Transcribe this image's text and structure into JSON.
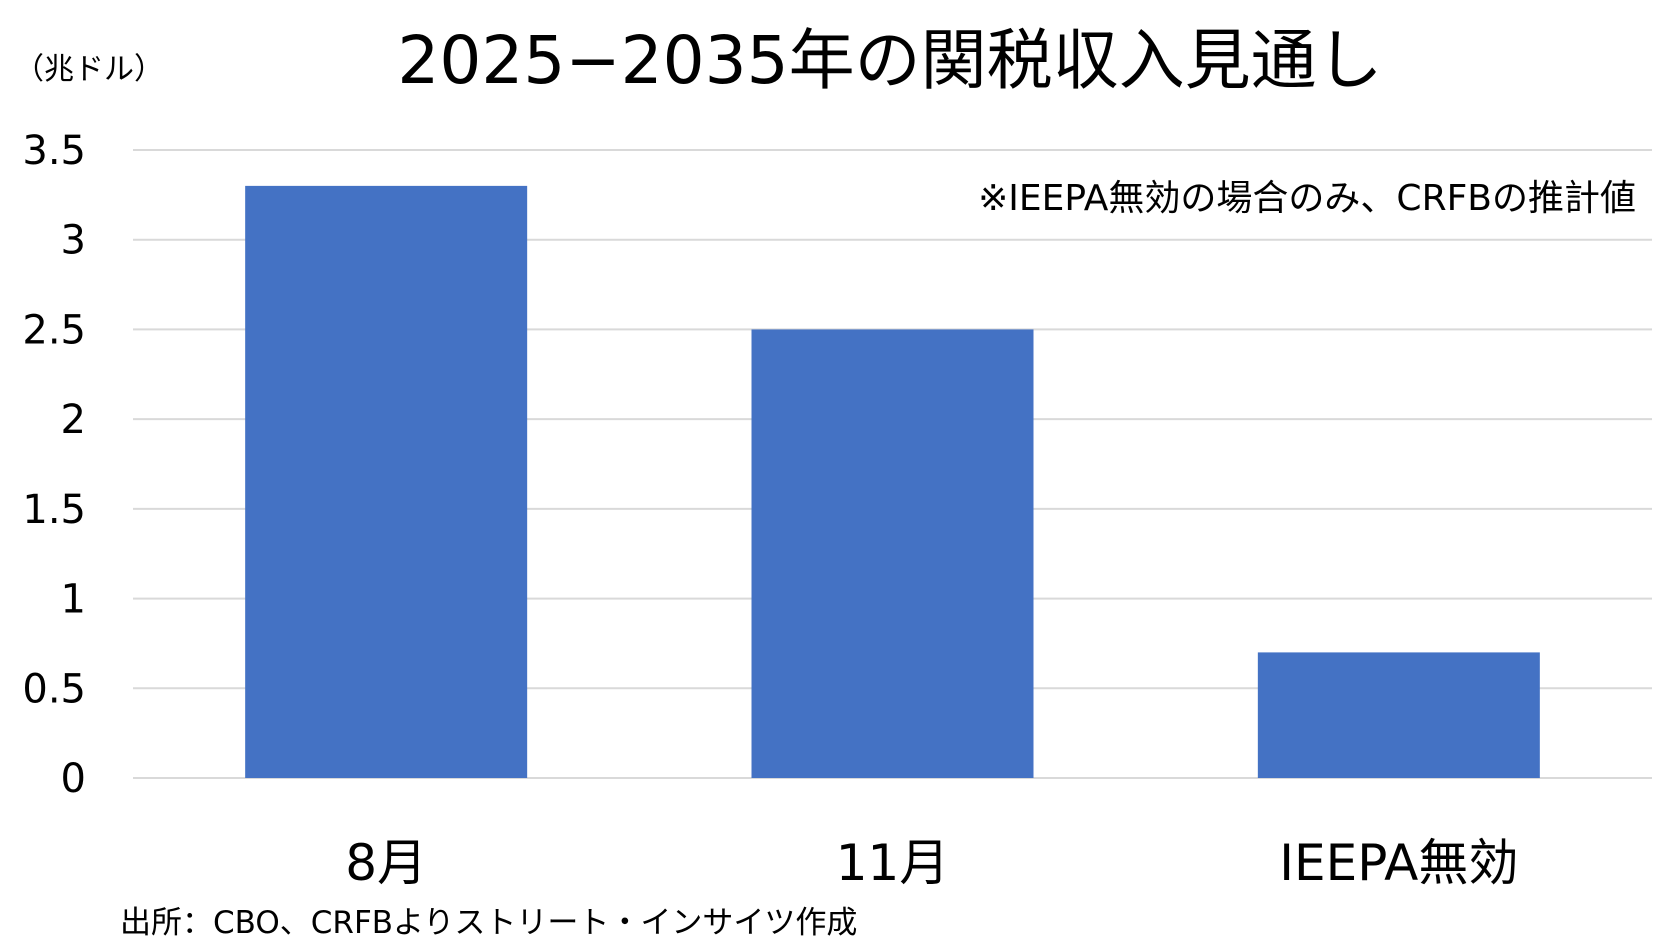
{
  "chart_data": {
    "type": "bar",
    "title": "2025−2035年の関税収入見通し",
    "ylabel": "（兆ドル）",
    "xlabel": "",
    "categories": [
      "8月",
      "11月",
      "IEEPA無効"
    ],
    "values": [
      3.3,
      2.5,
      0.7
    ],
    "ylim": [
      0,
      3.5
    ],
    "yticks": [
      "0",
      "0.5",
      "1",
      "1.5",
      "2",
      "2.5",
      "3",
      "3.5"
    ],
    "ytick_values": [
      0,
      0.5,
      1,
      1.5,
      2,
      2.5,
      3,
      3.5
    ],
    "grid": true,
    "legend": "none",
    "annotation": "※IEEPA無効の場合のみ、CRFBの推計値",
    "source": "出所：CBO、CRFBよりストリート・インサイツ作成",
    "bar_color": "#4472C4",
    "grid_color": "#D9D9D9"
  }
}
